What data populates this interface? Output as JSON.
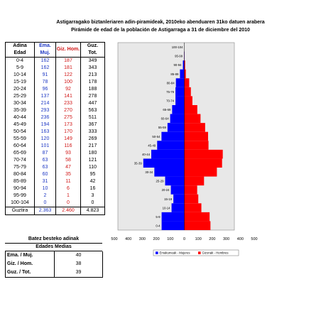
{
  "title_eu": "Astigarragako biztanleriaren adin-piramideak, 2010eko abenduaren 31ko datuen arabera",
  "title_es": "Pirámide de edad de la población de Astigarraga a 31 de diciembre del 2010",
  "table": {
    "headers": {
      "age": [
        "Adina",
        "Edad"
      ],
      "women": [
        "Ema.",
        "Muj."
      ],
      "men": "Giz. Hom.",
      "total": [
        "Guz.",
        "Tot."
      ]
    },
    "total_label": "Guztira",
    "total_women": "2.363",
    "total_men": "2.460",
    "total_all": "4.823"
  },
  "averages": {
    "title": [
      "Batez besteko adinak",
      "Edades Medias"
    ],
    "rows": [
      {
        "label": "Ema. / Muj.",
        "value": "40"
      },
      {
        "label": "Giz. / Hom.",
        "value": "38"
      },
      {
        "label": "Guz. / Tot.",
        "value": "39"
      }
    ]
  },
  "colors": {
    "women": "#0000ff",
    "men": "#ff0000",
    "plot_bg": "#e8e8e8"
  },
  "chart_data": {
    "type": "bar",
    "orientation": "horizontal-pyramid",
    "categories": [
      "0-4",
      "5-9",
      "10-14",
      "15-19",
      "20-24",
      "25-29",
      "30-34",
      "35-39",
      "40-44",
      "45-49",
      "50-54",
      "55-59",
      "60-64",
      "65-69",
      "70-74",
      "75-79",
      "80-84",
      "85-89",
      "90-94",
      "95-99",
      "100-104"
    ],
    "series": [
      {
        "name": "Emakumeak - Mujeres",
        "values": [
          162,
          162,
          91,
          78,
          96,
          137,
          214,
          293,
          236,
          194,
          163,
          120,
          101,
          87,
          63,
          63,
          60,
          31,
          10,
          2,
          0
        ]
      },
      {
        "name": "Gizonak - Hombres",
        "values": [
          187,
          181,
          122,
          100,
          92,
          141,
          233,
          270,
          275,
          173,
          170,
          149,
          116,
          93,
          58,
          47,
          35,
          11,
          6,
          1,
          0
        ]
      },
      {
        "name": "Guz. Tot.",
        "values": [
          349,
          343,
          213,
          178,
          188,
          278,
          447,
          563,
          511,
          367,
          333,
          269,
          217,
          180,
          121,
          110,
          95,
          42,
          16,
          3,
          0
        ]
      }
    ],
    "xlim": [
      -500,
      500
    ],
    "xticks": [
      "500",
      "400",
      "300",
      "200",
      "100",
      "0",
      "100",
      "200",
      "300",
      "400",
      "500"
    ],
    "legend": [
      "Emakumeak - Mujeres",
      "Gizonak - Hombres"
    ],
    "legend_position": "bottom",
    "grid": false
  }
}
